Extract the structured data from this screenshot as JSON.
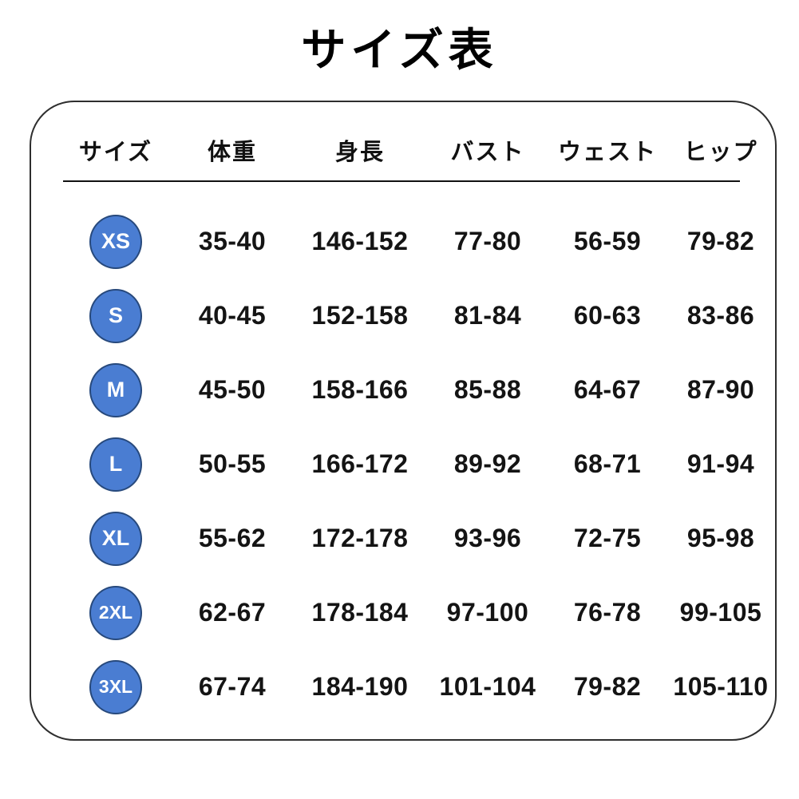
{
  "chart_data": {
    "type": "table",
    "title": "サイズ表",
    "columns": [
      "サイズ",
      "体重",
      "身長",
      "バスト",
      "ウェスト",
      "ヒップ"
    ],
    "rows": [
      [
        "XS",
        "35-40",
        "146-152",
        "77-80",
        "56-59",
        "79-82"
      ],
      [
        "S",
        "40-45",
        "152-158",
        "81-84",
        "60-63",
        "83-86"
      ],
      [
        "M",
        "45-50",
        "158-166",
        "85-88",
        "64-67",
        "87-90"
      ],
      [
        "L",
        "50-55",
        "166-172",
        "89-92",
        "68-71",
        "91-94"
      ],
      [
        "XL",
        "55-62",
        "172-178",
        "93-96",
        "72-75",
        "95-98"
      ],
      [
        "2XL",
        "62-67",
        "178-184",
        "97-100",
        "76-78",
        "99-105"
      ],
      [
        "3XL",
        "67-74",
        "184-190",
        "101-104",
        "79-82",
        "105-110"
      ]
    ]
  },
  "colors": {
    "badge_fill": "#4a7dd2",
    "badge_border": "#27497c",
    "badge_text": "#ffffff",
    "table_border": "#2e2e2e",
    "divider": "#111111",
    "text": "#1a1a1a",
    "background": "#ffffff"
  }
}
